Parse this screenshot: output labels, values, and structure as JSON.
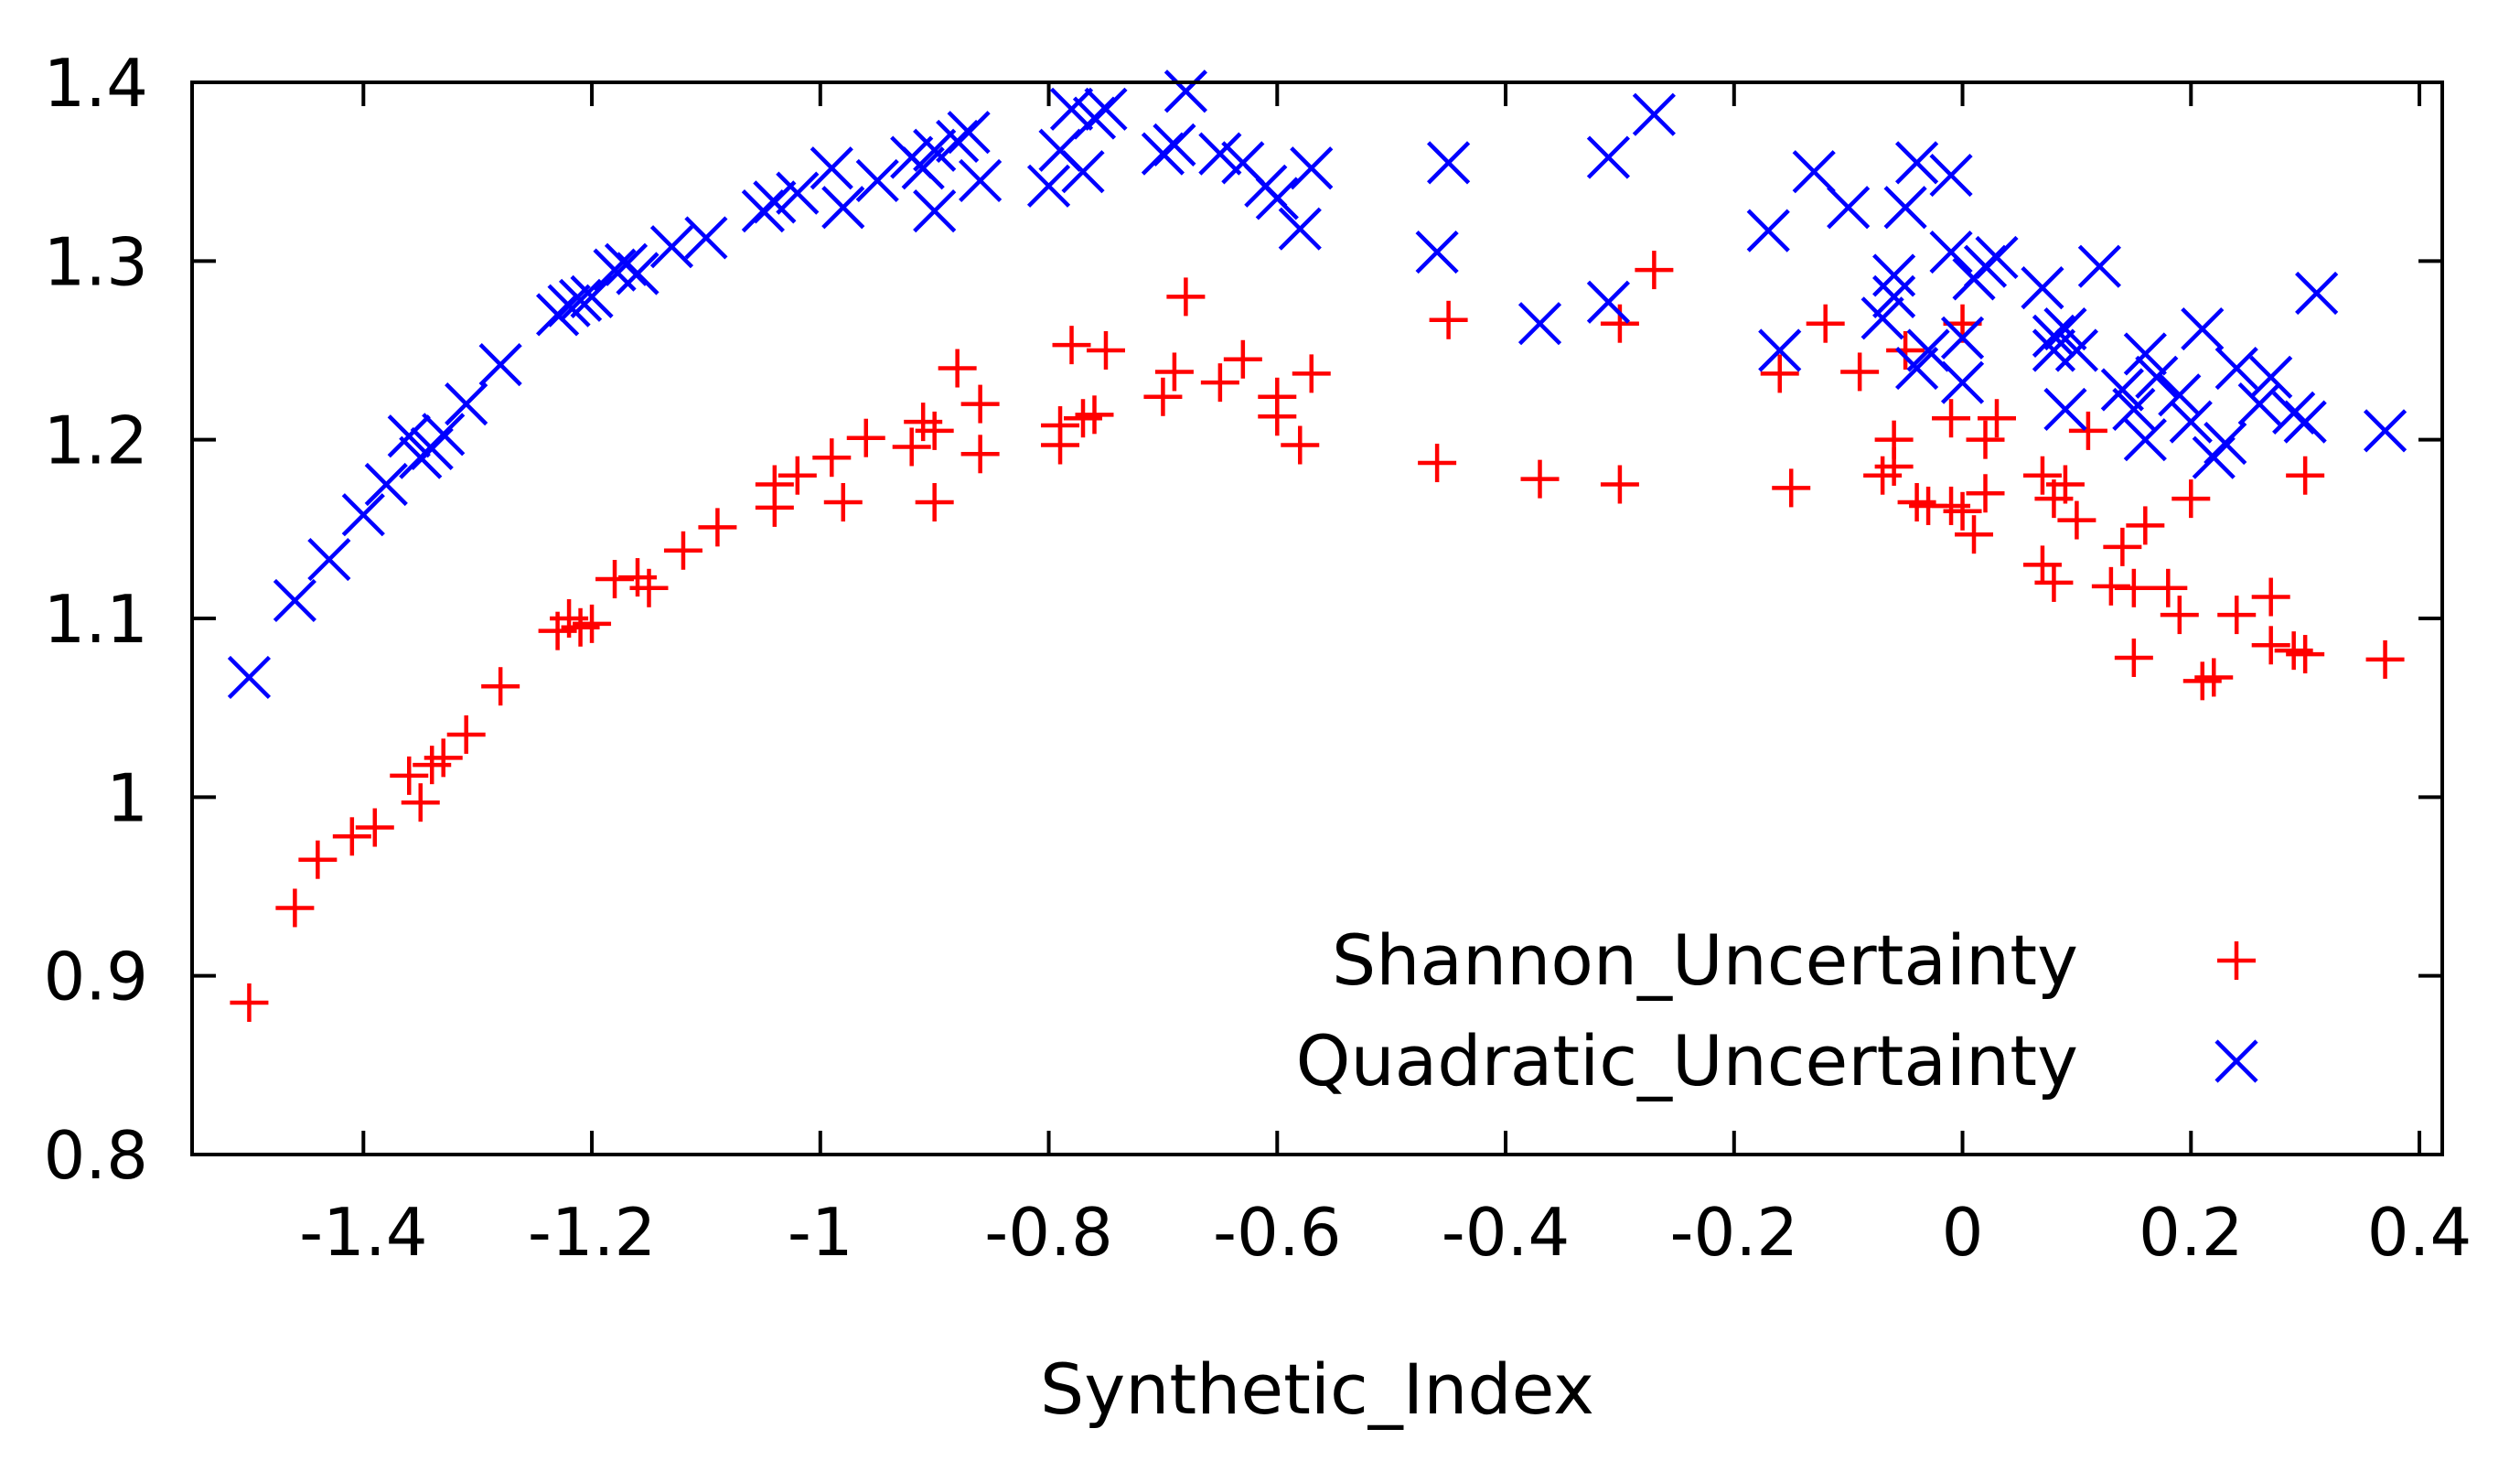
{
  "chart_data": {
    "type": "scatter",
    "title": "",
    "xlabel": "Synthetic_Index",
    "ylabel": "",
    "xlim": [
      -1.55,
      0.42
    ],
    "ylim": [
      0.8,
      1.4
    ],
    "grid": false,
    "legend_position": "bottom-right",
    "xticks": [
      -1.4,
      -1.2,
      -1.0,
      -0.8,
      -0.6,
      -0.4,
      -0.2,
      0.0,
      0.2,
      0.4
    ],
    "xtick_labels": [
      "-1.4",
      "-1.2",
      "-1",
      "-0.8",
      "-0.6",
      "-0.4",
      "-0.2",
      "0",
      "0.2",
      "0.4"
    ],
    "yticks": [
      0.8,
      0.9,
      1.0,
      1.1,
      1.2,
      1.3,
      1.4
    ],
    "ytick_labels": [
      "0.8",
      "0.9",
      "1",
      "1.1",
      "1.2",
      "1.3",
      "1.4"
    ],
    "series": [
      {
        "name": "Shannon_Uncertainty",
        "marker": "plus",
        "color": "#ff0000",
        "points": [
          [
            -1.5,
            0.885
          ],
          [
            -1.46,
            0.938
          ],
          [
            -1.44,
            0.965
          ],
          [
            -1.41,
            0.978
          ],
          [
            -1.39,
            0.983
          ],
          [
            -1.36,
            1.012
          ],
          [
            -1.35,
            0.997
          ],
          [
            -1.34,
            1.018
          ],
          [
            -1.33,
            1.022
          ],
          [
            -1.31,
            1.035
          ],
          [
            -1.28,
            1.062
          ],
          [
            -1.23,
            1.093
          ],
          [
            -1.22,
            1.1
          ],
          [
            -1.21,
            1.095
          ],
          [
            -1.2,
            1.097
          ],
          [
            -1.18,
            1.122
          ],
          [
            -1.16,
            1.123
          ],
          [
            -1.15,
            1.117
          ],
          [
            -1.12,
            1.138
          ],
          [
            -1.09,
            1.151
          ],
          [
            -1.04,
            1.175
          ],
          [
            -1.04,
            1.162
          ],
          [
            -1.02,
            1.18
          ],
          [
            -0.99,
            1.19
          ],
          [
            -0.98,
            1.165
          ],
          [
            -0.96,
            1.201
          ],
          [
            -0.92,
            1.196
          ],
          [
            -0.91,
            1.21
          ],
          [
            -0.9,
            1.205
          ],
          [
            -0.9,
            1.165
          ],
          [
            -0.88,
            1.24
          ],
          [
            -0.86,
            1.22
          ],
          [
            -0.86,
            1.192
          ],
          [
            -0.79,
            1.197
          ],
          [
            -0.79,
            1.208
          ],
          [
            -0.78,
            1.253
          ],
          [
            -0.77,
            1.212
          ],
          [
            -0.76,
            1.214
          ],
          [
            -0.75,
            1.25
          ],
          [
            -0.7,
            1.224
          ],
          [
            -0.69,
            1.238
          ],
          [
            -0.68,
            1.28
          ],
          [
            -0.65,
            1.232
          ],
          [
            -0.63,
            1.245
          ],
          [
            -0.6,
            1.224
          ],
          [
            -0.6,
            1.213
          ],
          [
            -0.58,
            1.197
          ],
          [
            -0.57,
            1.237
          ],
          [
            -0.46,
            1.187
          ],
          [
            -0.45,
            1.267
          ],
          [
            -0.37,
            1.178
          ],
          [
            -0.3,
            1.175
          ],
          [
            -0.3,
            1.265
          ],
          [
            -0.27,
            1.295
          ],
          [
            -0.16,
            1.237
          ],
          [
            -0.15,
            1.173
          ],
          [
            -0.12,
            1.265
          ],
          [
            -0.09,
            1.238
          ],
          [
            -0.07,
            1.18
          ],
          [
            -0.06,
            1.185
          ],
          [
            -0.06,
            1.2
          ],
          [
            -0.05,
            1.25
          ],
          [
            -0.04,
            1.165
          ],
          [
            -0.03,
            1.163
          ],
          [
            -0.01,
            1.163
          ],
          [
            -0.01,
            1.212
          ],
          [
            0.0,
            1.265
          ],
          [
            0.0,
            1.16
          ],
          [
            0.01,
            1.147
          ],
          [
            0.02,
            1.2
          ],
          [
            0.02,
            1.17
          ],
          [
            0.03,
            1.212
          ],
          [
            0.07,
            1.18
          ],
          [
            0.07,
            1.13
          ],
          [
            0.08,
            1.167
          ],
          [
            0.08,
            1.12
          ],
          [
            0.09,
            1.175
          ],
          [
            0.1,
            1.155
          ],
          [
            0.11,
            1.205
          ],
          [
            0.13,
            1.118
          ],
          [
            0.14,
            1.14
          ],
          [
            0.15,
            1.117
          ],
          [
            0.15,
            1.078
          ],
          [
            0.16,
            1.152
          ],
          [
            0.18,
            1.117
          ],
          [
            0.19,
            1.102
          ],
          [
            0.2,
            1.167
          ],
          [
            0.21,
            1.065
          ],
          [
            0.22,
            1.067
          ],
          [
            0.24,
            1.102
          ],
          [
            0.27,
            1.085
          ],
          [
            0.27,
            1.112
          ],
          [
            0.29,
            1.082
          ],
          [
            0.3,
            1.08
          ],
          [
            0.3,
            1.18
          ],
          [
            0.37,
            1.077
          ]
        ]
      },
      {
        "name": "Quadratic_Uncertainty",
        "marker": "cross",
        "color": "#0000ff",
        "points": [
          [
            -1.5,
            1.067
          ],
          [
            -1.46,
            1.11
          ],
          [
            -1.43,
            1.133
          ],
          [
            -1.4,
            1.158
          ],
          [
            -1.38,
            1.175
          ],
          [
            -1.36,
            1.202
          ],
          [
            -1.35,
            1.19
          ],
          [
            -1.34,
            1.195
          ],
          [
            -1.33,
            1.203
          ],
          [
            -1.31,
            1.22
          ],
          [
            -1.28,
            1.242
          ],
          [
            -1.23,
            1.27
          ],
          [
            -1.22,
            1.275
          ],
          [
            -1.21,
            1.278
          ],
          [
            -1.2,
            1.28
          ],
          [
            -1.18,
            1.295
          ],
          [
            -1.17,
            1.298
          ],
          [
            -1.16,
            1.293
          ],
          [
            -1.13,
            1.308
          ],
          [
            -1.1,
            1.313
          ],
          [
            -1.05,
            1.328
          ],
          [
            -1.04,
            1.333
          ],
          [
            -1.02,
            1.338
          ],
          [
            -0.99,
            1.352
          ],
          [
            -0.98,
            1.33
          ],
          [
            -0.95,
            1.345
          ],
          [
            -0.92,
            1.358
          ],
          [
            -0.91,
            1.352
          ],
          [
            -0.9,
            1.362
          ],
          [
            -0.9,
            1.328
          ],
          [
            -0.88,
            1.367
          ],
          [
            -0.87,
            1.372
          ],
          [
            -0.86,
            1.345
          ],
          [
            -0.8,
            1.342
          ],
          [
            -0.79,
            1.362
          ],
          [
            -0.78,
            1.385
          ],
          [
            -0.77,
            1.35
          ],
          [
            -0.76,
            1.38
          ],
          [
            -0.75,
            1.385
          ],
          [
            -0.7,
            1.36
          ],
          [
            -0.69,
            1.365
          ],
          [
            -0.68,
            1.395
          ],
          [
            -0.65,
            1.36
          ],
          [
            -0.63,
            1.355
          ],
          [
            -0.61,
            1.342
          ],
          [
            -0.6,
            1.335
          ],
          [
            -0.58,
            1.318
          ],
          [
            -0.57,
            1.352
          ],
          [
            -0.46,
            1.305
          ],
          [
            -0.45,
            1.355
          ],
          [
            -0.37,
            1.265
          ],
          [
            -0.31,
            1.277
          ],
          [
            -0.31,
            1.358
          ],
          [
            -0.27,
            1.382
          ],
          [
            -0.17,
            1.317
          ],
          [
            -0.16,
            1.25
          ],
          [
            -0.13,
            1.35
          ],
          [
            -0.1,
            1.33
          ],
          [
            -0.07,
            1.268
          ],
          [
            -0.06,
            1.292
          ],
          [
            -0.06,
            1.28
          ],
          [
            -0.05,
            1.33
          ],
          [
            -0.04,
            1.355
          ],
          [
            -0.04,
            1.24
          ],
          [
            -0.03,
            1.25
          ],
          [
            -0.01,
            1.348
          ],
          [
            -0.01,
            1.305
          ],
          [
            0.0,
            1.232
          ],
          [
            0.0,
            1.257
          ],
          [
            0.01,
            1.29
          ],
          [
            0.02,
            1.297
          ],
          [
            0.03,
            1.302
          ],
          [
            0.07,
            1.285
          ],
          [
            0.08,
            1.258
          ],
          [
            0.08,
            1.25
          ],
          [
            0.09,
            1.262
          ],
          [
            0.09,
            1.217
          ],
          [
            0.1,
            1.25
          ],
          [
            0.12,
            1.297
          ],
          [
            0.14,
            1.228
          ],
          [
            0.15,
            1.217
          ],
          [
            0.16,
            1.248
          ],
          [
            0.16,
            1.2
          ],
          [
            0.17,
            1.235
          ],
          [
            0.19,
            1.225
          ],
          [
            0.2,
            1.21
          ],
          [
            0.21,
            1.262
          ],
          [
            0.22,
            1.19
          ],
          [
            0.23,
            1.198
          ],
          [
            0.24,
            1.24
          ],
          [
            0.26,
            1.22
          ],
          [
            0.27,
            1.235
          ],
          [
            0.29,
            1.215
          ],
          [
            0.3,
            1.21
          ],
          [
            0.31,
            1.282
          ],
          [
            0.37,
            1.205
          ]
        ]
      }
    ]
  }
}
